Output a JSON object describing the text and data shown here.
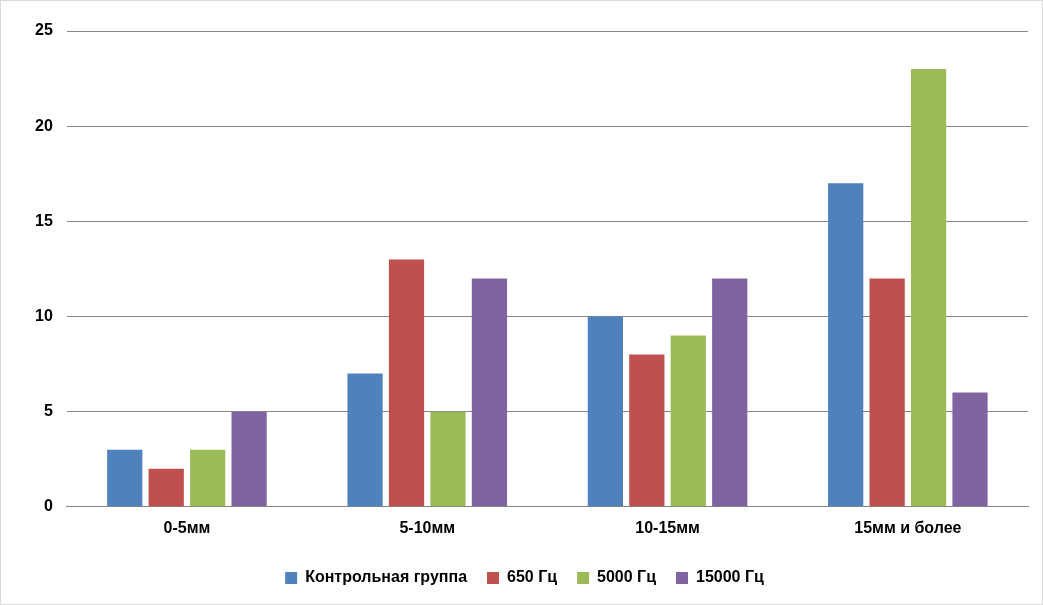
{
  "chart_data": {
    "type": "bar",
    "categories": [
      "0-5мм",
      "5-10мм",
      "10-15мм",
      "15мм и более"
    ],
    "series": [
      {
        "name": "Контрольная группа",
        "color": "#4f81bd",
        "values": [
          3,
          7,
          10,
          17
        ]
      },
      {
        "name": "650 Гц",
        "color": "#c0504d",
        "values": [
          2,
          13,
          8,
          12
        ]
      },
      {
        "name": "5000 Гц",
        "color": "#9bbb59",
        "values": [
          3,
          5,
          9,
          23
        ]
      },
      {
        "name": "15000 Гц",
        "color": "#8064a2",
        "values": [
          5,
          12,
          12,
          6
        ]
      }
    ],
    "ylim": [
      0,
      25
    ],
    "yticks": [
      0,
      5,
      10,
      15,
      20,
      25
    ],
    "grid": "y",
    "legend": "bottom"
  }
}
